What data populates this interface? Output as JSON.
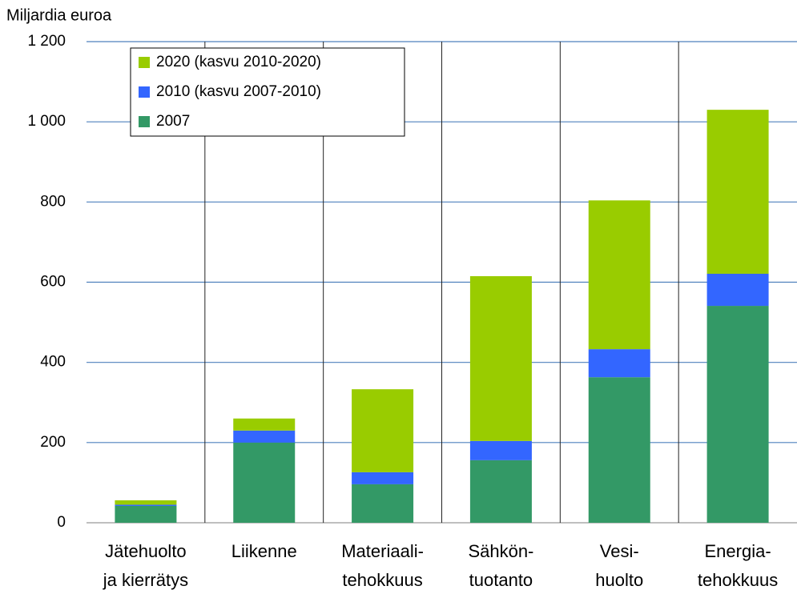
{
  "chart_data": {
    "type": "stacked_bar",
    "y_label": "Miljardia euroa",
    "categories": [
      [
        "Jätehuolto",
        "ja kierrätys"
      ],
      [
        "Liikenne"
      ],
      [
        "Materiaali-",
        "tehokkuus"
      ],
      [
        "Sähkön-",
        "tuotanto"
      ],
      [
        "Vesi-",
        "huolto"
      ],
      [
        "Energia-",
        "tehokkuus"
      ]
    ],
    "series": [
      {
        "name": "2007",
        "color": "#339966",
        "values": [
          42,
          200,
          96,
          156,
          363,
          541
        ]
      },
      {
        "name": "2010 (kasvu 2007-2010)",
        "color": "#3366ff",
        "values": [
          3,
          30,
          30,
          48,
          70,
          80
        ]
      },
      {
        "name": "2020 (kasvu 2010-2020)",
        "color": "#99cc00",
        "values": [
          11,
          30,
          207,
          411,
          371,
          409
        ]
      }
    ],
    "ylim": [
      0,
      1200
    ],
    "yticks": [
      0,
      200,
      400,
      600,
      800,
      {
        "value": 1000,
        "label": "1 000"
      },
      {
        "value": 1200,
        "label": "1 200"
      }
    ],
    "grid": true,
    "legend": "upper left"
  }
}
